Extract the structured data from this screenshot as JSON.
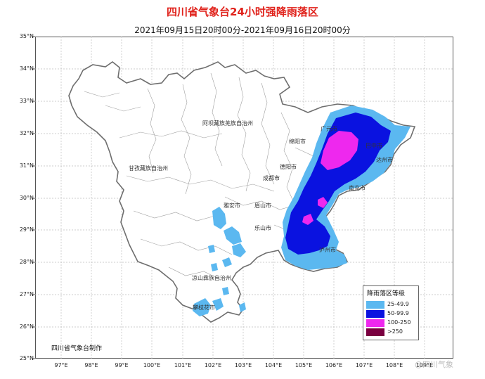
{
  "title": "四川省气象台24小时强降雨落区",
  "subtitle": "2021年09月15日20时00分-2021年09月16日20时00分",
  "latitudes": [
    "35°N",
    "34°N",
    "33°N",
    "32°N",
    "31°N",
    "30°N",
    "29°N",
    "28°N",
    "27°N",
    "26°N",
    "25°N"
  ],
  "longitudes": [
    "97°E",
    "98°E",
    "99°E",
    "100°E",
    "101°E",
    "102°E",
    "103°E",
    "104°E",
    "105°E",
    "106°E",
    "107°E",
    "108°E",
    "109°E"
  ],
  "cities": [
    "阿坝藏族羌族自治州",
    "广元市",
    "绵阳市",
    "巴中市",
    "达州市",
    "甘孜藏族自治州",
    "德阳市",
    "成都市",
    "南充市",
    "雅安市",
    "眉山市",
    "乐山市",
    "泸州市",
    "凉山彝族自治州",
    "攀枝花市"
  ],
  "legend": {
    "title": "降雨落区等级",
    "items": [
      {
        "label": "25-49.9",
        "color": "#5bb8f0"
      },
      {
        "label": "50-99.9",
        "color": "#0a12e0"
      },
      {
        "label": "100-250",
        "color": "#ee28ee"
      },
      {
        "label": ">250",
        "color": "#7a0040"
      }
    ]
  },
  "credit": "四川省气象台制作",
  "watermark": "@四川气象",
  "colors": {
    "title": "#e0221b",
    "province_border": "#6e6e6e",
    "county_border": "#9a9a9a"
  }
}
